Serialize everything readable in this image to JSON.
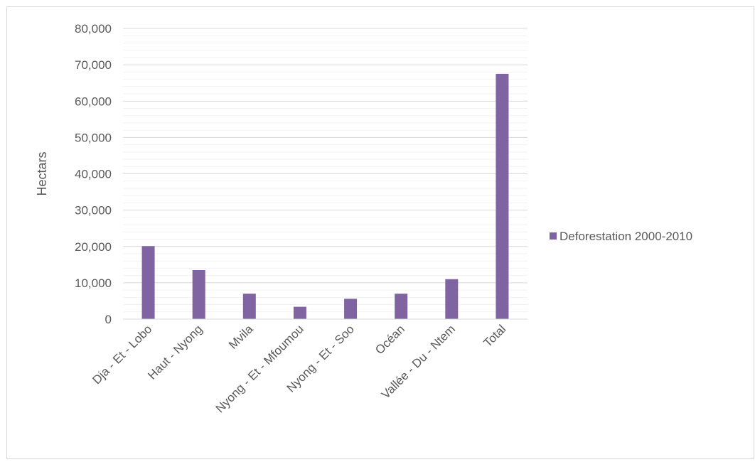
{
  "chart_data": {
    "type": "bar",
    "title": "",
    "xlabel": "",
    "ylabel": "Hectars",
    "categories": [
      "Dja - Et - Lobo",
      "Haut - Nyong",
      "Mvila",
      "Nyong - Et - Mfoumou",
      "Nyong - Et - Soo",
      "Océan",
      "Vallée - Du - Ntem",
      "Total"
    ],
    "series": [
      {
        "name": "Deforestation 2000-2010",
        "color": "#8064a2",
        "values": [
          20100,
          13500,
          7000,
          3400,
          5600,
          7000,
          11000,
          67500
        ]
      }
    ],
    "ylim": [
      0,
      80000
    ],
    "y_major_step": 10000,
    "y_minor_step": 2000,
    "ytick_labels": [
      "0",
      "10,000",
      "20,000",
      "30,000",
      "40,000",
      "50,000",
      "60,000",
      "70,000",
      "80,000"
    ],
    "grid": true,
    "legend_position": "right"
  }
}
